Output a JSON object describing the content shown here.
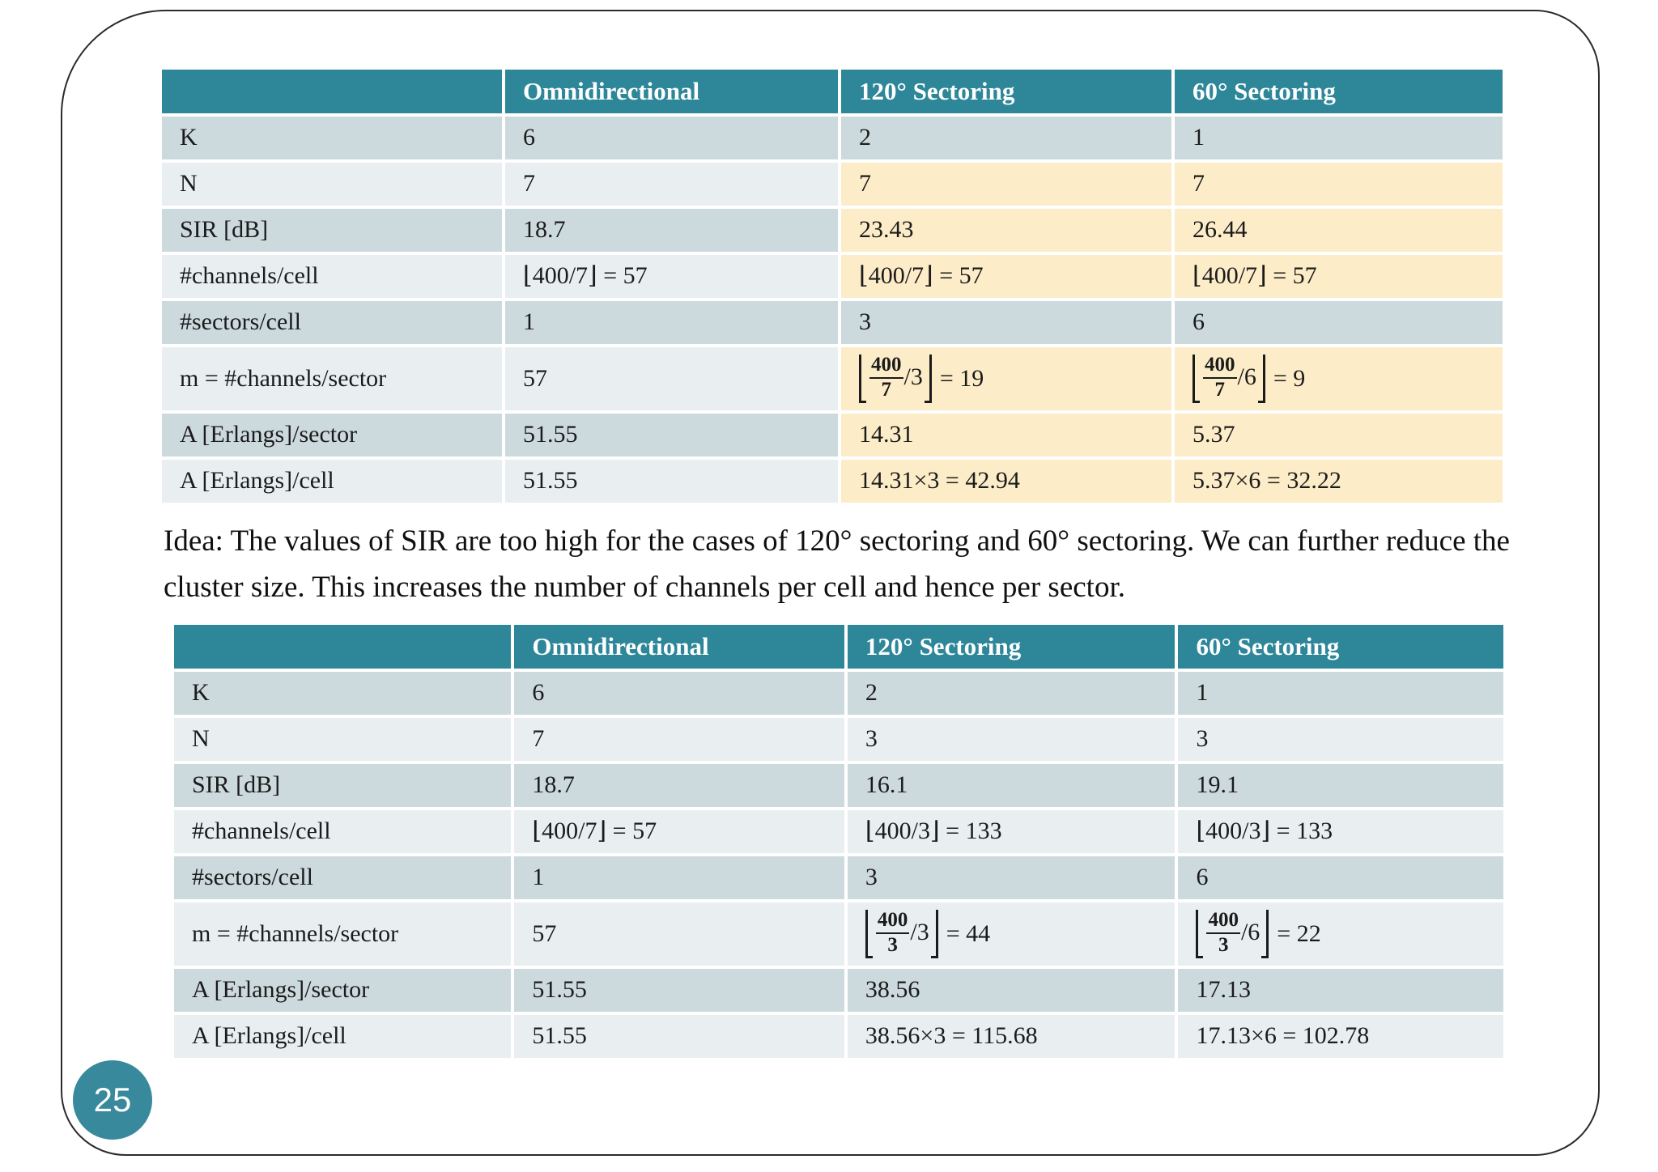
{
  "slide": {
    "page_number": "25",
    "idea_text": "Idea: The values of SIR are too high for the cases of 120° sectoring and 60° sectoring. We can further reduce the cluster size. This increases the number of channels per cell and hence per sector."
  },
  "colors": {
    "header_teal": "#2e8799",
    "row_dark": "#ccd9dd",
    "row_light": "#e9eff1",
    "highlight_yellow": "#fdecc8",
    "badge_teal": "#37899b"
  },
  "table1": {
    "headers": [
      "",
      "Omnidirectional",
      "120° Sectoring",
      "60° Sectoring"
    ],
    "highlight_columns": [
      2,
      3
    ],
    "rows": [
      {
        "label": "K",
        "hl": false,
        "tall": false,
        "cells": [
          {
            "t": "6"
          },
          {
            "t": "2"
          },
          {
            "t": "1"
          }
        ]
      },
      {
        "label": "N",
        "hl": true,
        "tall": false,
        "cells": [
          {
            "t": "7"
          },
          {
            "t": "7"
          },
          {
            "t": "7"
          }
        ]
      },
      {
        "label": "SIR [dB]",
        "hl": true,
        "tall": false,
        "cells": [
          {
            "t": "18.7"
          },
          {
            "t": "23.43"
          },
          {
            "t": "26.44"
          }
        ]
      },
      {
        "label": "#channels/cell",
        "hl": true,
        "tall": false,
        "cells": [
          {
            "t": "⌊400/7⌋ = 57"
          },
          {
            "t": "⌊400/7⌋ = 57"
          },
          {
            "t": "⌊400/7⌋ = 57"
          }
        ]
      },
      {
        "label": "#sectors/cell",
        "hl": false,
        "tall": false,
        "cells": [
          {
            "t": "1"
          },
          {
            "t": "3"
          },
          {
            "t": "6"
          }
        ]
      },
      {
        "label": "m = #channels/sector",
        "hl": true,
        "tall": true,
        "cells": [
          {
            "t": "57"
          },
          {
            "frac_num": "400",
            "frac_den": "7",
            "divisor": "/3",
            "result": "= 19"
          },
          {
            "frac_num": "400",
            "frac_den": "7",
            "divisor": "/6",
            "result": "= 9"
          }
        ]
      },
      {
        "label": "A [Erlangs]/sector",
        "hl": true,
        "tall": false,
        "cells": [
          {
            "t": "51.55"
          },
          {
            "t": "14.31"
          },
          {
            "t": "5.37"
          }
        ]
      },
      {
        "label": "A [Erlangs]/cell",
        "hl": true,
        "tall": false,
        "cells": [
          {
            "t": "51.55"
          },
          {
            "t": "14.31×3 = 42.94"
          },
          {
            "t": "5.37×6 = 32.22"
          }
        ]
      }
    ]
  },
  "table2": {
    "headers": [
      "",
      "Omnidirectional",
      "120° Sectoring",
      "60° Sectoring"
    ],
    "highlight_columns": [],
    "rows": [
      {
        "label": "K",
        "hl": false,
        "tall": false,
        "cells": [
          {
            "t": "6"
          },
          {
            "t": "2"
          },
          {
            "t": "1"
          }
        ]
      },
      {
        "label": "N",
        "hl": false,
        "tall": false,
        "cells": [
          {
            "t": "7"
          },
          {
            "t": "3"
          },
          {
            "t": "3"
          }
        ]
      },
      {
        "label": "SIR [dB]",
        "hl": false,
        "tall": false,
        "cells": [
          {
            "t": "18.7"
          },
          {
            "t": "16.1"
          },
          {
            "t": "19.1"
          }
        ]
      },
      {
        "label": "#channels/cell",
        "hl": false,
        "tall": false,
        "cells": [
          {
            "t": "⌊400/7⌋ = 57"
          },
          {
            "t": "⌊400/3⌋ = 133"
          },
          {
            "t": "⌊400/3⌋ = 133"
          }
        ]
      },
      {
        "label": "#sectors/cell",
        "hl": false,
        "tall": false,
        "cells": [
          {
            "t": "1"
          },
          {
            "t": "3"
          },
          {
            "t": "6"
          }
        ]
      },
      {
        "label": "m = #channels/sector",
        "hl": false,
        "tall": true,
        "cells": [
          {
            "t": "57"
          },
          {
            "frac_num": "400",
            "frac_den": "3",
            "divisor": "/3",
            "result": "= 44"
          },
          {
            "frac_num": "400",
            "frac_den": "3",
            "divisor": "/6",
            "result": "= 22"
          }
        ]
      },
      {
        "label": "A [Erlangs]/sector",
        "hl": false,
        "tall": false,
        "cells": [
          {
            "t": "51.55"
          },
          {
            "t": "38.56"
          },
          {
            "t": "17.13"
          }
        ]
      },
      {
        "label": "A [Erlangs]/cell",
        "hl": false,
        "tall": false,
        "cells": [
          {
            "t": "51.55"
          },
          {
            "t": "38.56×3 = 115.68"
          },
          {
            "t": "17.13×6 = 102.78"
          }
        ]
      }
    ]
  }
}
